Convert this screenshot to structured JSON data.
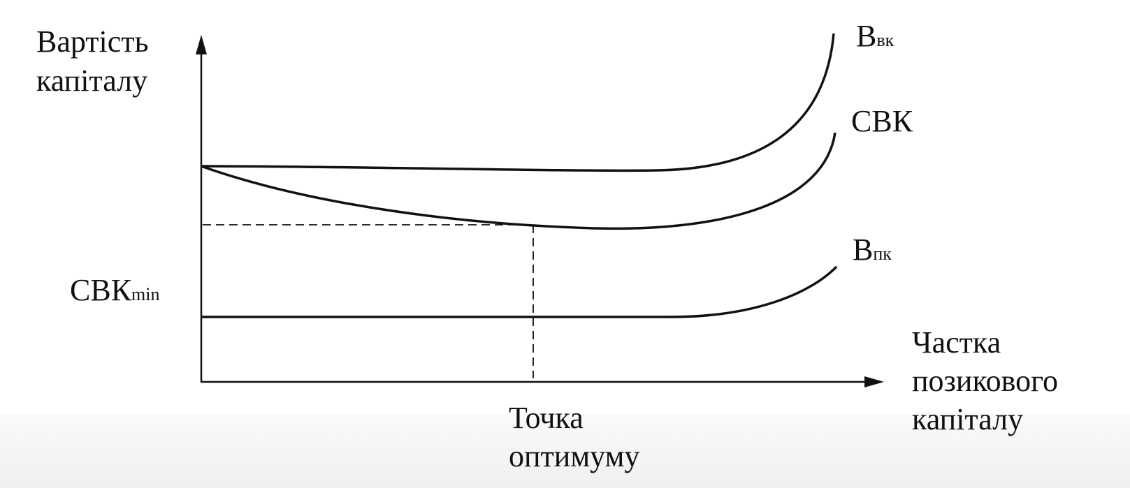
{
  "y_axis": {
    "label_lines": [
      "Вартість",
      "капіталу"
    ]
  },
  "x_axis": {
    "label_lines": [
      "Частка",
      "позикового",
      "капіталу"
    ]
  },
  "curves": [
    {
      "label": "В",
      "subscript": "вк"
    },
    {
      "label": "СВК"
    },
    {
      "label": "В",
      "subscript": "пк"
    }
  ],
  "min_label": {
    "label": "СВК",
    "subscript": "min"
  },
  "optimum_label": {
    "label_lines": [
      "Точка",
      "оптимуму"
    ]
  }
}
